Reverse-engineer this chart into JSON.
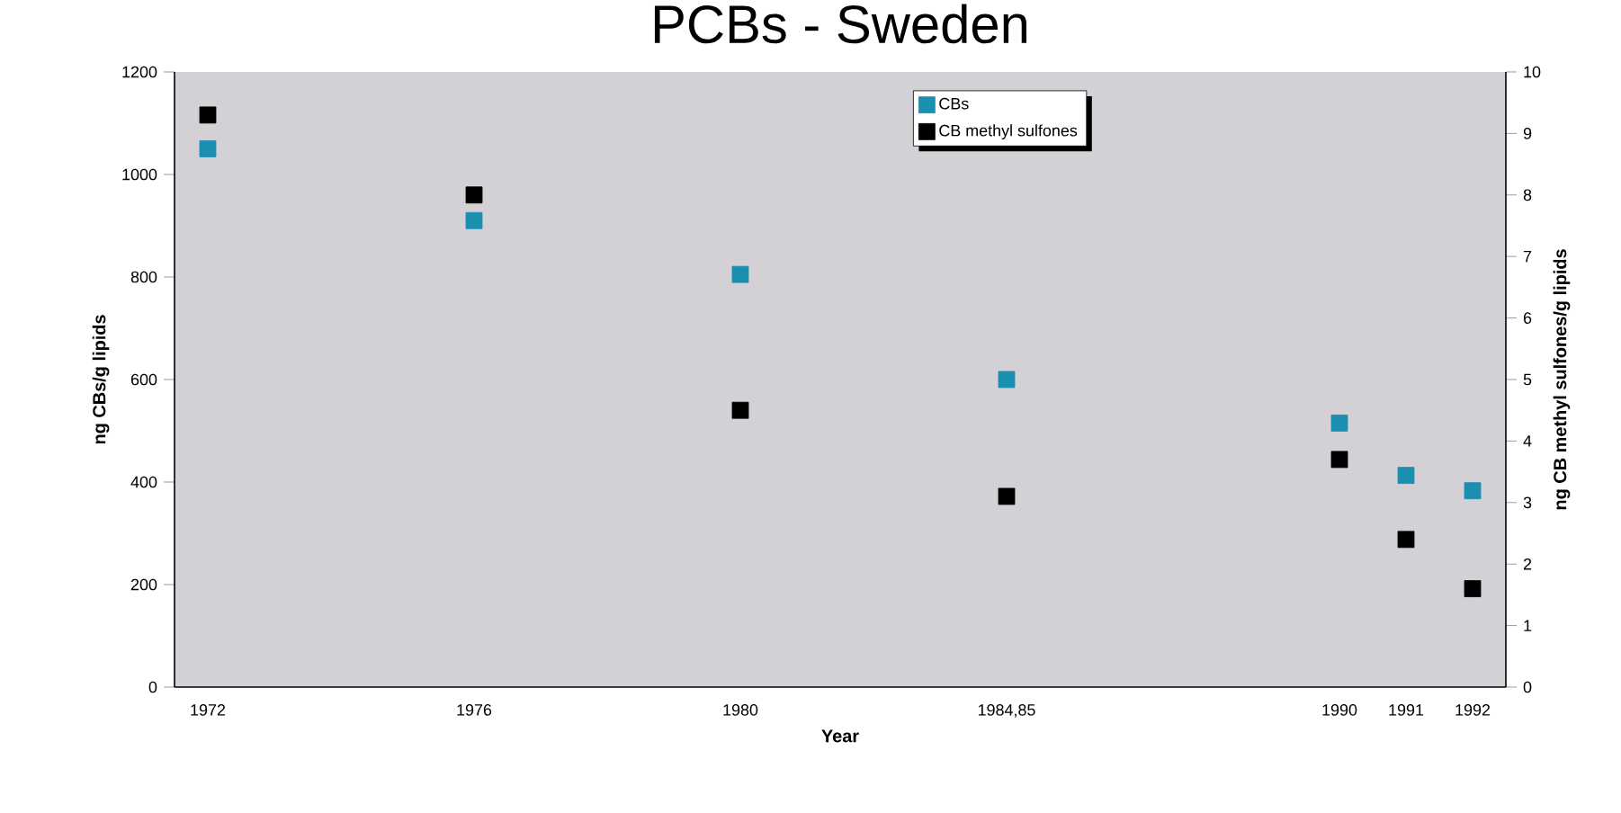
{
  "chart_data": {
    "type": "scatter",
    "title": "PCBs - Sweden",
    "xlabel": "Year",
    "ylabel": "ng CBs/g lipids",
    "y2label": "ng CB methyl sulfones/g lipids",
    "categories": [
      "1972",
      null,
      null,
      null,
      "1976",
      null,
      null,
      null,
      "1980",
      null,
      null,
      null,
      "1984,85",
      null,
      null,
      null,
      null,
      "1990",
      "1991",
      "1992"
    ],
    "series": [
      {
        "name": "CBs",
        "color": "#1a8fb0",
        "values": [
          1050,
          null,
          null,
          null,
          910,
          null,
          null,
          null,
          805,
          null,
          null,
          null,
          600,
          null,
          null,
          null,
          null,
          515,
          413,
          383
        ]
      },
      {
        "name": "CB methyl sulfones",
        "color": "#000000",
        "axis": "y2",
        "values": [
          9.3,
          null,
          null,
          null,
          8.0,
          null,
          null,
          null,
          4.5,
          null,
          null,
          null,
          3.1,
          null,
          null,
          null,
          null,
          3.7,
          2.4,
          1.6
        ]
      }
    ],
    "ylim": [
      0,
      1200
    ],
    "yticks": [
      0,
      200,
      400,
      600,
      800,
      1000,
      1200
    ],
    "y2lim": [
      0,
      10
    ],
    "y2ticks": [
      0,
      1,
      2,
      3,
      4,
      5,
      6,
      7,
      8,
      9,
      10
    ],
    "marker": "square",
    "legend": "top"
  }
}
